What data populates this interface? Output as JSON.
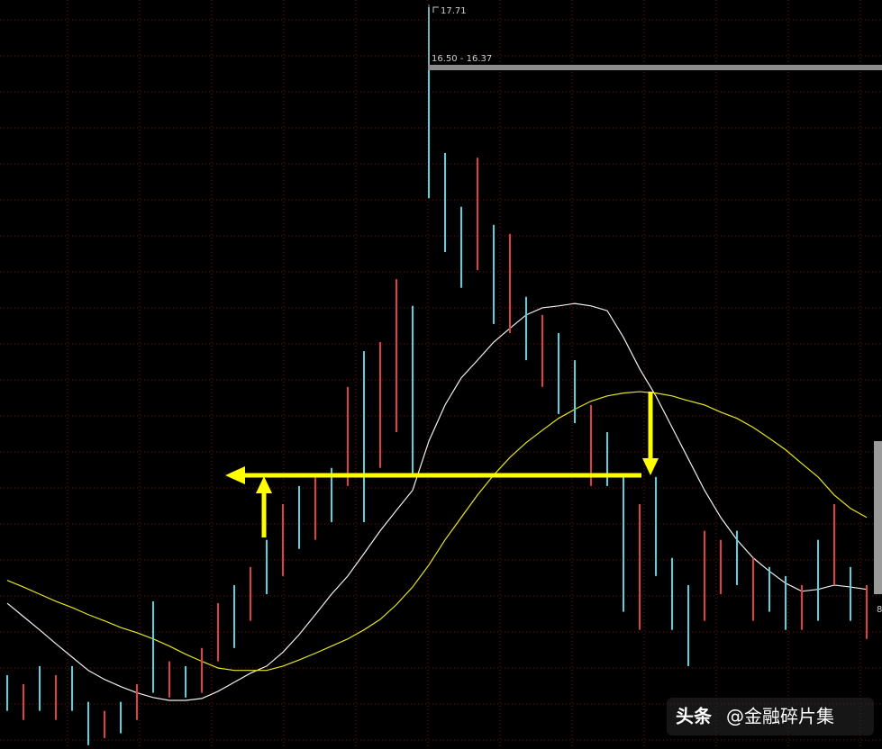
{
  "chart_data": {
    "type": "hilo",
    "categories": [
      null,
      null,
      null,
      null,
      null,
      null,
      null,
      null,
      null,
      null,
      null,
      null,
      null,
      null,
      null,
      null,
      null,
      null,
      null,
      null,
      null,
      null,
      null,
      null,
      null,
      null,
      null,
      null,
      null,
      null,
      null,
      null,
      null,
      null,
      null,
      null,
      null,
      null,
      null,
      null,
      null,
      null,
      null,
      null,
      null,
      null,
      null,
      null,
      null,
      null,
      null,
      null,
      null,
      null
    ],
    "high": [
      3.69,
      3.5,
      3.88,
      3.69,
      3.88,
      3.13,
      2.94,
      3.13,
      3.5,
      5.24,
      3.98,
      3.88,
      4.26,
      5.2,
      5.58,
      5.96,
      6.53,
      7.28,
      7.66,
      7.85,
      8.04,
      9.74,
      10.49,
      10.68,
      12.0,
      11.44,
      17.71,
      14.65,
      13.52,
      14.55,
      13.14,
      12.95,
      11.63,
      11.25,
      10.87,
      10.3,
      9.36,
      8.79,
      7.85,
      7.28,
      7.85,
      6.15,
      5.58,
      6.72,
      6.53,
      6.72,
      6.15,
      5.96,
      5.77,
      5.58,
      6.53,
      7.28,
      5.96,
      5.58
    ],
    "low": [
      2.94,
      2.75,
      2.94,
      2.75,
      2.94,
      2.22,
      2.37,
      2.47,
      2.75,
      3.32,
      3.22,
      3.22,
      3.32,
      3.98,
      4.26,
      4.83,
      5.39,
      5.77,
      6.34,
      6.53,
      6.9,
      7.66,
      6.9,
      8.04,
      8.79,
      7.85,
      13.7,
      12.57,
      11.82,
      12.19,
      11.06,
      10.87,
      10.3,
      9.74,
      9.17,
      8.98,
      7.66,
      7.66,
      5.02,
      4.64,
      5.77,
      4.64,
      3.88,
      4.83,
      5.39,
      5.58,
      4.83,
      5.02,
      4.64,
      4.64,
      4.83,
      5.58,
      4.83,
      4.45
    ],
    "bar_colors": [
      "#54d2e0",
      "#e04040",
      "#54d2e0",
      "#e04040",
      "#54d2e0",
      "#54d2e0",
      "#e04040",
      "#54d2e0",
      "#e04040",
      "#54d2e0",
      "#e04040",
      "#54d2e0",
      "#e04040",
      "#e04040",
      "#54d2e0",
      "#e04040",
      "#54d2e0",
      "#e04040",
      "#54d2e0",
      "#e04040",
      "#54d2e0",
      "#e04040",
      "#54d2e0",
      "#e04040",
      "#e04040",
      "#54d2e0",
      "#54d2e0",
      "#54d2e0",
      "#54d2e0",
      "#e04040",
      "#54d2e0",
      "#e04040",
      "#54d2e0",
      "#e04040",
      "#54d2e0",
      "#54d2e0",
      "#e04040",
      "#54d2e0",
      "#54d2e0",
      "#e04040",
      "#54d2e0",
      "#54d2e0",
      "#54d2e0",
      "#e04040",
      "#e04040",
      "#54d2e0",
      "#e04040",
      "#54d2e0",
      "#54d2e0",
      "#e04040",
      "#54d2e0",
      "#e04040",
      "#54d2e0",
      "#e04040"
    ],
    "series": [
      {
        "color": "#f0f0f0",
        "values": [
          5.2,
          4.92,
          4.64,
          4.35,
          4.07,
          3.79,
          3.6,
          3.45,
          3.32,
          3.22,
          3.16,
          3.16,
          3.2,
          3.35,
          3.54,
          3.73,
          3.88,
          4.17,
          4.54,
          4.96,
          5.39,
          5.77,
          6.24,
          6.72,
          7.15,
          7.57,
          8.6,
          9.36,
          9.93,
          10.3,
          10.68,
          10.97,
          11.25,
          11.4,
          11.44,
          11.49,
          11.44,
          11.34,
          10.78,
          10.12,
          9.55,
          8.89,
          8.23,
          7.57,
          7.0,
          6.53,
          6.15,
          5.87,
          5.62,
          5.45,
          5.49,
          5.58,
          5.54,
          5.49
        ]
      },
      {
        "color": "#e6e61e",
        "values": [
          5.68,
          5.54,
          5.39,
          5.24,
          5.11,
          4.96,
          4.83,
          4.69,
          4.58,
          4.45,
          4.3,
          4.13,
          3.98,
          3.84,
          3.79,
          3.79,
          3.79,
          3.88,
          4.01,
          4.15,
          4.3,
          4.45,
          4.64,
          4.86,
          5.17,
          5.54,
          6.0,
          6.53,
          7.0,
          7.47,
          7.89,
          8.26,
          8.57,
          8.83,
          9.08,
          9.27,
          9.44,
          9.55,
          9.61,
          9.64,
          9.61,
          9.55,
          9.45,
          9.36,
          9.21,
          9.08,
          8.89,
          8.66,
          8.42,
          8.13,
          7.85,
          7.47,
          7.19,
          7.0
        ]
      }
    ],
    "ylim": [
      2.14,
      17.86
    ],
    "grid": true,
    "annotations": {
      "peak_label": "17.71",
      "range_label": "16.50 - 16.37",
      "edge_label": "8"
    }
  },
  "watermark": {
    "logo": "头条",
    "account": "@金融碎片集"
  }
}
